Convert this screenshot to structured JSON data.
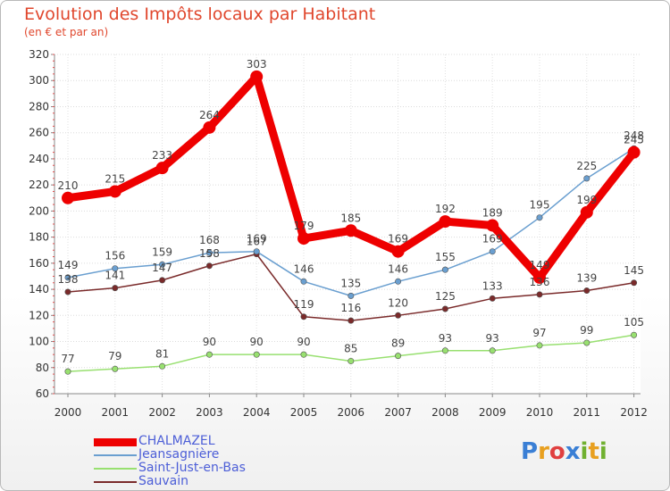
{
  "chart_data": {
    "type": "line",
    "title": "Evolution des Impôts locaux par Habitant",
    "subtitle": "(en € et par an)",
    "categories": [
      "2000",
      "2001",
      "2002",
      "2003",
      "2004",
      "2005",
      "2006",
      "2007",
      "2008",
      "2009",
      "2010",
      "2011",
      "2012"
    ],
    "ylim": [
      60,
      320
    ],
    "yticks": [
      60,
      80,
      100,
      120,
      140,
      160,
      180,
      200,
      220,
      240,
      260,
      280,
      300,
      320
    ],
    "series": [
      {
        "name": "CHALMAZEL",
        "color": "#ee0000",
        "values": [
          210,
          215,
          233,
          264,
          303,
          179,
          185,
          169,
          192,
          189,
          149,
          199,
          245
        ]
      },
      {
        "name": "Jeansagnière",
        "color": "#6a9fd0",
        "values": [
          149,
          156,
          159,
          168,
          169,
          146,
          135,
          146,
          155,
          169,
          195,
          225,
          248
        ]
      },
      {
        "name": "Saint-Just-en-Bas",
        "color": "#98e070",
        "values": [
          77,
          79,
          81,
          90,
          90,
          90,
          85,
          89,
          93,
          93,
          97,
          99,
          105
        ]
      },
      {
        "name": "Sauvain",
        "color": "#7a2a2a",
        "values": [
          138,
          141,
          147,
          158,
          167,
          119,
          116,
          120,
          125,
          133,
          136,
          139,
          145
        ]
      }
    ]
  },
  "brand": {
    "letters": [
      "P",
      "r",
      "o",
      "x",
      "i",
      "t",
      "i"
    ],
    "colors": [
      "#3a7fd5",
      "#e8a020",
      "#e04040",
      "#3a7fd5",
      "#70b030",
      "#e8a020",
      "#70b030"
    ]
  }
}
